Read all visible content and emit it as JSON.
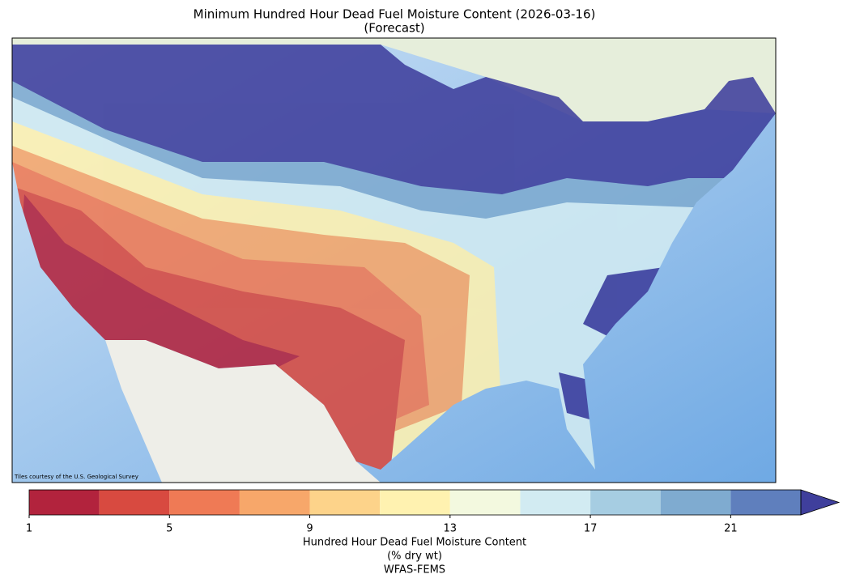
{
  "title": "Minimum Hundred Hour Dead Fuel Moisture Content (2026-03-16)",
  "subtitle": "(Forecast)",
  "attribution": "Tiles courtesy of the U.S. Geological Survey",
  "colorbar": {
    "bounds": [
      1,
      3,
      5,
      7,
      9,
      11,
      13,
      15,
      17,
      19,
      21,
      23
    ],
    "colors": [
      "#b2233d",
      "#d84a40",
      "#ef7a55",
      "#f7a76a",
      "#fdd38a",
      "#fff2b0",
      "#f3f9df",
      "#d2ebf2",
      "#a6cde2",
      "#7fabd0",
      "#5f7fbd"
    ],
    "extend_color": "#3f3f9c",
    "ticks": [
      1,
      5,
      9,
      13,
      17,
      21
    ],
    "label": [
      "Hundred Hour Dead Fuel Moisture Content",
      "(% dry wt)",
      "WFAS-FEMS"
    ]
  }
}
